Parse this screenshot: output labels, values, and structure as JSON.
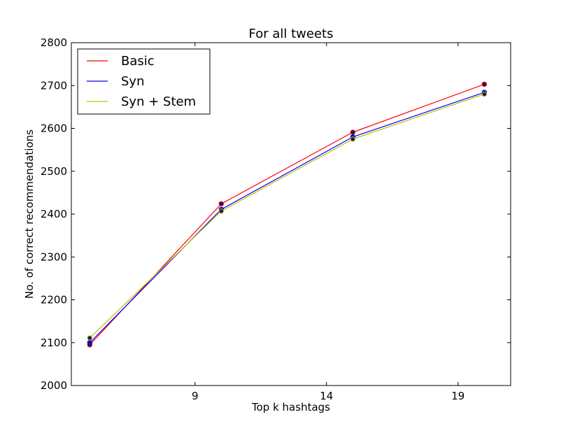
{
  "chart_data": {
    "type": "line",
    "title": "For all tweets",
    "xlabel": "Top k hashtags",
    "ylabel": "No. of correct recommendations",
    "xlim": [
      4.3,
      21
    ],
    "ylim": [
      2000,
      2800
    ],
    "xticks": [
      9,
      14,
      19
    ],
    "yticks": [
      2000,
      2100,
      2200,
      2300,
      2400,
      2500,
      2600,
      2700,
      2800
    ],
    "grid": false,
    "legend_position": "top-left",
    "x": [
      5,
      10,
      15,
      20
    ],
    "series": [
      {
        "name": "Basic",
        "color": "#ff0000",
        "values": [
          2095,
          2424,
          2591,
          2703
        ]
      },
      {
        "name": "Syn",
        "color": "#0000ff",
        "values": [
          2100,
          2411,
          2580,
          2684
        ]
      },
      {
        "name": "Syn + Stem",
        "color": "#bfbf00",
        "values": [
          2111,
          2407,
          2575,
          2680
        ]
      }
    ],
    "marker_color": "#1a1a66"
  }
}
